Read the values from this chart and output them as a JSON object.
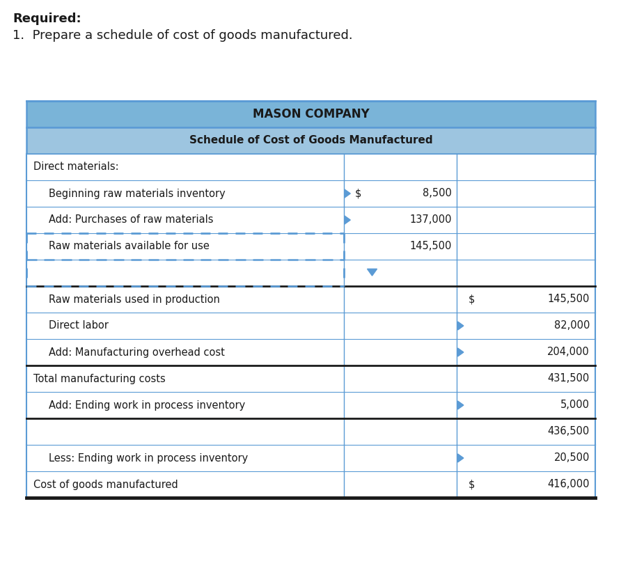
{
  "title1": "MASON COMPANY",
  "title2": "Schedule of Cost of Goods Manufactured",
  "header_bg1": "#7ab4d8",
  "header_bg2": "#9dc5e0",
  "border_color": "#5b9bd5",
  "text_color": "#1a1a1a",
  "white": "#ffffff",
  "rows": [
    {
      "label": "Direct materials:",
      "col2": "",
      "col3": "",
      "indent": 0,
      "arrow2": false,
      "arrow3": false,
      "dollar2": false,
      "dollar3": false,
      "bottom_border": "none",
      "top_border_black": false
    },
    {
      "label": "Beginning raw materials inventory",
      "col2": "8,500",
      "col3": "",
      "indent": 1,
      "arrow2": true,
      "arrow3": false,
      "dollar2": true,
      "dollar3": false,
      "bottom_border": "none",
      "top_border_black": false
    },
    {
      "label": "Add: Purchases of raw materials",
      "col2": "137,000",
      "col3": "",
      "indent": 1,
      "arrow2": true,
      "arrow3": false,
      "dollar2": false,
      "dollar3": false,
      "bottom_border": "none",
      "top_border_black": false
    },
    {
      "label": "Raw materials available for use",
      "col2": "145,500",
      "col3": "",
      "indent": 1,
      "arrow2": false,
      "arrow3": false,
      "dollar2": false,
      "dollar3": false,
      "bottom_border": "dashed_partial",
      "top_border_black": false
    },
    {
      "label": "",
      "col2": "",
      "col3": "",
      "indent": 0,
      "arrow2": false,
      "arrow3": false,
      "dollar2": false,
      "dollar3": false,
      "bottom_border": "black_solid",
      "top_border_black": false
    },
    {
      "label": "Raw materials used in production",
      "col2": "",
      "col3": "145,500",
      "indent": 1,
      "arrow2": false,
      "arrow3": false,
      "dollar2": false,
      "dollar3": true,
      "bottom_border": "none",
      "top_border_black": false
    },
    {
      "label": "Direct labor",
      "col2": "",
      "col3": "82,000",
      "indent": 1,
      "arrow2": false,
      "arrow3": true,
      "dollar2": false,
      "dollar3": false,
      "bottom_border": "none",
      "top_border_black": false
    },
    {
      "label": "Add: Manufacturing overhead cost",
      "col2": "",
      "col3": "204,000",
      "indent": 1,
      "arrow2": false,
      "arrow3": true,
      "dollar2": false,
      "dollar3": false,
      "bottom_border": "black_solid",
      "top_border_black": false
    },
    {
      "label": "Total manufacturing costs",
      "col2": "",
      "col3": "431,500",
      "indent": 0,
      "arrow2": false,
      "arrow3": false,
      "dollar2": false,
      "dollar3": false,
      "bottom_border": "none",
      "top_border_black": false
    },
    {
      "label": "Add: Ending work in process inventory",
      "col2": "",
      "col3": "5,000",
      "indent": 1,
      "arrow2": false,
      "arrow3": true,
      "dollar2": false,
      "dollar3": false,
      "bottom_border": "black_solid",
      "top_border_black": false
    },
    {
      "label": "",
      "col2": "",
      "col3": "436,500",
      "indent": 0,
      "arrow2": false,
      "arrow3": false,
      "dollar2": false,
      "dollar3": false,
      "bottom_border": "none",
      "top_border_black": false
    },
    {
      "label": "Less: Ending work in process inventory",
      "col2": "",
      "col3": "20,500",
      "indent": 1,
      "arrow2": false,
      "arrow3": true,
      "dollar2": false,
      "dollar3": false,
      "bottom_border": "none",
      "top_border_black": false
    },
    {
      "label": "Cost of goods manufactured",
      "col2": "",
      "col3": "416,000",
      "indent": 0,
      "arrow2": false,
      "arrow3": false,
      "dollar2": false,
      "dollar3": true,
      "bottom_border": "black_thick",
      "top_border_black": false
    }
  ],
  "top_text_line1": "Required:",
  "top_text_line2": "1.  Prepare a schedule of cost of goods manufactured."
}
